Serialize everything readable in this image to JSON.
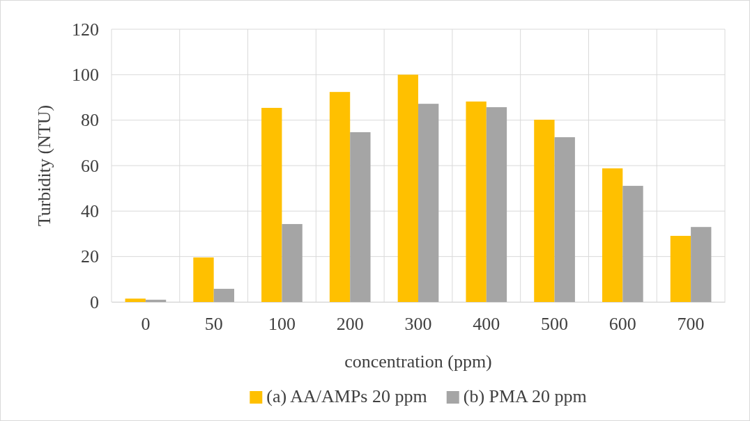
{
  "chart_data": {
    "type": "bar",
    "xlabel": "concentration (ppm)",
    "ylabel": "Turbidity (NTU)",
    "categories": [
      "0",
      "50",
      "100",
      "200",
      "300",
      "400",
      "500",
      "600",
      "700"
    ],
    "series": [
      {
        "name": "(a) AA/AMPs 20 ppm",
        "color": "#ffc000",
        "values": [
          1.5,
          19.6,
          85.4,
          92.4,
          100,
          88.2,
          80.2,
          58.8,
          29.1
        ]
      },
      {
        "name": "(b) PMA 20 ppm",
        "color": "#a5a5a5",
        "values": [
          1,
          5.8,
          34.3,
          74.7,
          87.2,
          85.7,
          72.5,
          51.1,
          33
        ]
      }
    ],
    "ylim": [
      0,
      120
    ],
    "yticks": [
      0,
      20,
      40,
      60,
      80,
      100,
      120
    ],
    "grid": true,
    "legend": "bottom"
  }
}
